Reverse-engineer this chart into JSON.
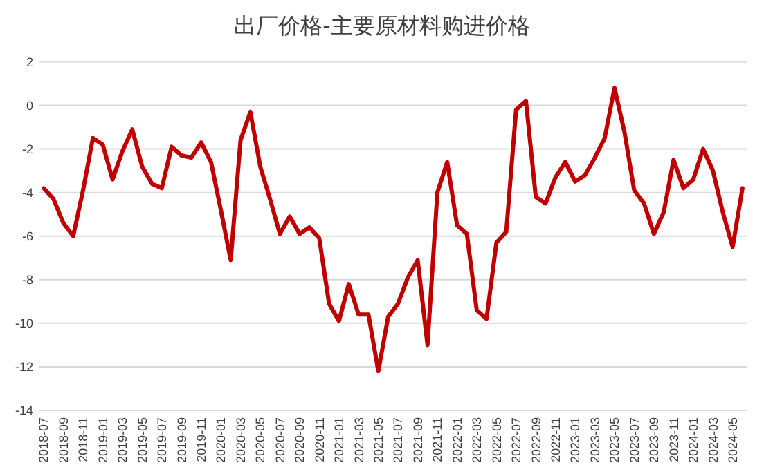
{
  "chart_data": {
    "type": "line",
    "title": "出厂价格-主要原材料购进价格",
    "categories": [
      "2018-07",
      null,
      "2018-09",
      null,
      "2018-11",
      null,
      "2019-01",
      null,
      "2019-03",
      null,
      "2019-05",
      null,
      "2019-07",
      null,
      "2019-09",
      null,
      "2019-11",
      null,
      "2020-01",
      null,
      "2020-03",
      null,
      "2020-05",
      null,
      "2020-07",
      null,
      "2020-09",
      null,
      "2020-11",
      null,
      "2021-01",
      null,
      "2021-03",
      null,
      "2021-05",
      null,
      "2021-07",
      null,
      "2021-09",
      null,
      "2021-11",
      null,
      "2022-01",
      null,
      "2022-03",
      null,
      "2022-05",
      null,
      "2022-07",
      null,
      "2022-09",
      null,
      "2022-11",
      null,
      "2023-01",
      null,
      "2023-03",
      null,
      "2023-05",
      null,
      "2023-07",
      null,
      "2023-09",
      null,
      "2023-11",
      null,
      "2024-01",
      null,
      "2024-03",
      null,
      "2024-05",
      null
    ],
    "series": [
      {
        "color": "#c00000",
        "values": [
          -3.8,
          -4.3,
          -5.4,
          -6.0,
          -3.9,
          -1.5,
          -1.8,
          -3.4,
          -2.1,
          -1.1,
          -2.8,
          -3.6,
          -3.8,
          -1.9,
          -2.3,
          -2.4,
          -1.7,
          -2.6,
          -4.8,
          -7.1,
          -1.6,
          -0.3,
          -2.8,
          -4.3,
          -5.9,
          -5.1,
          -5.9,
          -5.6,
          -6.1,
          -9.1,
          -9.9,
          -8.2,
          -9.6,
          -9.6,
          -12.2,
          -9.7,
          -9.1,
          -7.9,
          -7.1,
          -11.0,
          -4.0,
          -2.6,
          -5.5,
          -5.9,
          -9.4,
          -9.8,
          -6.3,
          -5.8,
          -0.2,
          0.2,
          -4.2,
          -4.5,
          -3.3,
          -2.6,
          -3.5,
          -3.2,
          -2.4,
          -1.5,
          0.8,
          -1.2,
          -3.9,
          -4.5,
          -5.9,
          -4.9,
          -2.5,
          -3.8,
          -3.4,
          -2.0,
          -3.0,
          -4.9,
          -6.5,
          -3.8
        ]
      }
    ],
    "ylim": [
      -14,
      2
    ],
    "yticks": [
      -14,
      -12,
      -10,
      -8,
      -6,
      -4,
      -2,
      0,
      2
    ],
    "grid": "y",
    "line_style": "solid",
    "marker": "none"
  }
}
